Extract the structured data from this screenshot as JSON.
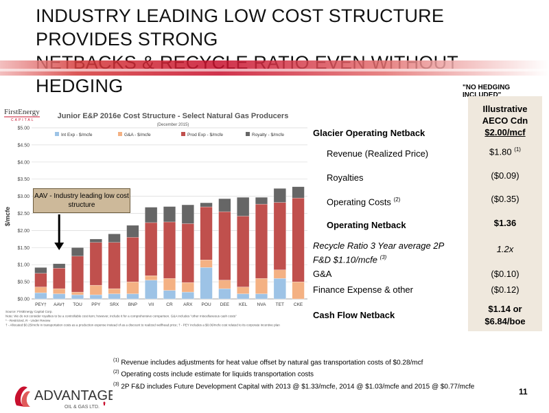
{
  "page": {
    "title_line1": "INDUSTRY LEADING LOW COST STRUCTURE PROVIDES STRONG",
    "title_line2": "NETBACKS & RECYCLE RATIO EVEN WITHOUT HEDGING",
    "page_number": "11"
  },
  "colors": {
    "accent_red": "#c8102e",
    "int_exp": "#9dc3e6",
    "ga": "#f4b183",
    "prod_exp": "#c0504d",
    "royalty": "#666666",
    "table_bg": "#efe8dd",
    "callout_bg": "#cdb99a"
  },
  "chart_data": {
    "type": "bar",
    "stacked": true,
    "title": "Junior E&P 2016e Cost Structure - Select Natural Gas Producers",
    "subtitle": "(December 2015)",
    "brand": "FirstEnergy",
    "brand_sub": "CAPITAL",
    "ylabel": "$/mcfe",
    "ylim": [
      0,
      5
    ],
    "yticks": [
      "$0.00",
      "$0.50",
      "$1.00",
      "$1.50",
      "$2.00",
      "$2.50",
      "$3.00",
      "$3.50",
      "$4.00",
      "$4.50",
      "$5.00"
    ],
    "categories": [
      "PEY",
      "AAV",
      "TOU",
      "PPY",
      "SRX",
      "BNP",
      "VII",
      "CR",
      "ARX",
      "POU",
      "DEE",
      "KEL",
      "NVA",
      "TET",
      "CKE"
    ],
    "category_suffix": [
      "†",
      "†",
      "",
      "",
      "",
      "",
      "",
      "",
      "",
      "",
      "",
      "",
      "",
      "",
      ""
    ],
    "series": [
      {
        "name": "Int Exp - $/mcfe",
        "values": [
          0.18,
          0.15,
          0.12,
          0.12,
          0.15,
          0.15,
          0.55,
          0.25,
          0.2,
          0.92,
          0.3,
          0.15,
          0.15,
          0.6,
          0.0
        ]
      },
      {
        "name": "G&A - $/mcfe",
        "values": [
          0.17,
          0.15,
          0.08,
          0.28,
          0.15,
          0.35,
          0.13,
          0.35,
          0.28,
          0.22,
          0.25,
          0.2,
          0.45,
          0.25,
          0.5
        ]
      },
      {
        "name": "Prod Exp - $/mcfe",
        "values": [
          0.4,
          0.6,
          1.05,
          1.25,
          1.35,
          1.3,
          1.55,
          1.65,
          1.72,
          1.55,
          2.0,
          2.07,
          2.17,
          1.97,
          2.45
        ]
      },
      {
        "name": "Royalty - $/mcfe",
        "values": [
          0.17,
          0.13,
          0.25,
          0.1,
          0.25,
          0.35,
          0.45,
          0.45,
          0.55,
          0.12,
          0.38,
          0.55,
          0.2,
          0.41,
          0.33
        ]
      }
    ],
    "notes": [
      "Source: FirstEnergy Capital Corp.",
      "Note: We do not consider royalties to be a controllable cost item; however, include it for a comprehensive comparison. G&A includes \"other miscellaneous cash costs\"",
      "* - Restricted, R - Under Review",
      "† - Allocated $0.25/mcfe in transportation costs as a production expense instead of as a discount to realized wellhead price; † - PEY includes a $0.06/mcfe cost related to its corporate incentive plan"
    ],
    "callout": "AAV - Industry leading low cost structure"
  },
  "table": {
    "no_hedging": "\"NO HEDGING INCLUDED\"",
    "header_line1": "Illustrative",
    "header_line2": "AECO Cdn",
    "header_line3": "$2.00/mcf",
    "rows": [
      {
        "label": "Glacier Operating Netback",
        "value": ""
      },
      {
        "label": "Revenue (Realized Price)",
        "value": "$1.80",
        "sup": "(1)"
      },
      {
        "label": "Royalties",
        "value": "($0.09)"
      },
      {
        "label": "Operating Costs",
        "label_sup": "(2)",
        "value": "($0.35)"
      },
      {
        "label": "Operating Netback",
        "value": "$1.36"
      },
      {
        "label": "Recycle Ratio 3 Year average 2P",
        "label2": "F&D $1.10/mcfe",
        "label_sup": "(3)",
        "value": "1.2x"
      },
      {
        "label": "G&A",
        "value": "($0.10)"
      },
      {
        "label": "Finance Expense & other",
        "value": "($0.12)"
      },
      {
        "label": "Cash Flow Netback",
        "value": "$1.14 or",
        "value2": "$6.84/boe"
      }
    ]
  },
  "footnotes": [
    {
      "sup": "(1)",
      "text": "Revenue includes adjustments for heat value offset by natural gas transportation costs of $0.28/mcf"
    },
    {
      "sup": "(2)",
      "text": "Operating costs include estimate for liquids transportation costs"
    },
    {
      "sup": "(3)",
      "text": "2P F&D includes Future Development Capital with 2013 @ $1.33/mcfe, 2014 @ $1.03/mcfe and 2015 @ $0.77/mcfe"
    }
  ],
  "logo": {
    "name": "ADVANTAGE",
    "sub": "OIL & GAS LTD."
  }
}
